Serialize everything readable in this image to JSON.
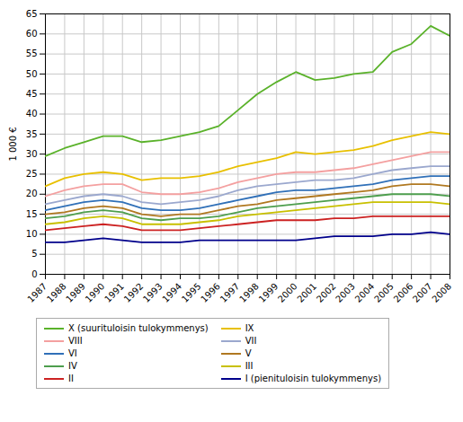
{
  "chart_data": {
    "type": "line",
    "ylabel": "1 000 €",
    "x": [
      1987,
      1988,
      1989,
      1990,
      1991,
      1992,
      1993,
      1994,
      1995,
      1996,
      1997,
      1998,
      1999,
      2000,
      2001,
      2002,
      2003,
      2004,
      2005,
      2006,
      2007,
      2008
    ],
    "xlim": [
      1987,
      2008
    ],
    "xticks": [
      1987,
      1988,
      1989,
      1990,
      1991,
      1992,
      1993,
      1994,
      1995,
      1996,
      1997,
      1998,
      1999,
      2000,
      2001,
      2002,
      2003,
      2004,
      2005,
      2006,
      2007,
      2008
    ],
    "ylim": [
      0,
      65
    ],
    "yticks": [
      0,
      5,
      10,
      15,
      20,
      25,
      30,
      35,
      40,
      45,
      50,
      55,
      60,
      65
    ],
    "grid": true,
    "legend": "bottom",
    "series": [
      {
        "name": "X (suurituloisin tulokymmenys)",
        "color": "#5ab22a",
        "values": [
          29.5,
          31.5,
          33.0,
          34.5,
          34.5,
          33.0,
          33.5,
          34.5,
          35.5,
          37.0,
          41.0,
          45.0,
          48.0,
          50.5,
          48.5,
          49.0,
          50.0,
          50.5,
          55.5,
          57.5,
          62.0,
          59.5
        ]
      },
      {
        "name": "IX",
        "color": "#e8c000",
        "values": [
          22.0,
          24.0,
          25.0,
          25.5,
          25.0,
          23.5,
          24.0,
          24.0,
          24.5,
          25.5,
          27.0,
          28.0,
          29.0,
          30.5,
          30.0,
          30.5,
          31.0,
          32.0,
          33.5,
          34.5,
          35.5,
          35.0
        ]
      },
      {
        "name": "VIII",
        "color": "#f4a0a0",
        "values": [
          19.5,
          21.0,
          22.0,
          22.5,
          22.5,
          20.5,
          20.0,
          20.0,
          20.5,
          21.5,
          23.0,
          24.0,
          25.0,
          25.5,
          25.5,
          26.0,
          26.5,
          27.5,
          28.5,
          29.5,
          30.5,
          30.5
        ]
      },
      {
        "name": "VII",
        "color": "#9ba8ce",
        "values": [
          17.5,
          18.5,
          19.5,
          20.0,
          19.5,
          18.0,
          17.5,
          18.0,
          18.5,
          19.5,
          21.0,
          22.0,
          22.5,
          23.0,
          23.5,
          23.5,
          24.0,
          25.0,
          26.0,
          26.5,
          27.0,
          27.0
        ]
      },
      {
        "name": "VI",
        "color": "#3070b8",
        "values": [
          16.0,
          17.0,
          18.0,
          18.5,
          18.0,
          16.5,
          16.0,
          16.0,
          16.5,
          17.5,
          18.5,
          19.5,
          20.5,
          21.0,
          21.0,
          21.5,
          22.0,
          22.5,
          23.5,
          24.0,
          24.5,
          24.5
        ]
      },
      {
        "name": "V",
        "color": "#b07820",
        "values": [
          15.0,
          15.5,
          16.5,
          17.0,
          16.5,
          15.0,
          14.5,
          15.0,
          15.0,
          16.0,
          17.0,
          17.5,
          18.5,
          19.0,
          19.5,
          20.0,
          20.5,
          21.0,
          22.0,
          22.5,
          22.5,
          22.0
        ]
      },
      {
        "name": "IV",
        "color": "#4d9e4d",
        "values": [
          14.0,
          14.5,
          15.5,
          16.0,
          15.5,
          14.0,
          13.5,
          14.0,
          14.0,
          14.5,
          15.5,
          16.5,
          17.0,
          17.5,
          18.0,
          18.5,
          19.0,
          19.5,
          20.0,
          20.0,
          20.0,
          19.5
        ]
      },
      {
        "name": "III",
        "color": "#c8c000",
        "values": [
          12.5,
          13.0,
          14.0,
          14.5,
          14.0,
          12.5,
          12.5,
          12.5,
          13.0,
          13.5,
          14.5,
          15.0,
          15.5,
          16.0,
          16.5,
          17.0,
          17.5,
          18.0,
          18.0,
          18.0,
          18.0,
          17.5
        ]
      },
      {
        "name": "II",
        "color": "#cc2222",
        "values": [
          11.0,
          11.5,
          12.0,
          12.5,
          12.0,
          11.0,
          11.0,
          11.0,
          11.5,
          12.0,
          12.5,
          13.0,
          13.5,
          13.5,
          13.5,
          14.0,
          14.0,
          14.5,
          14.5,
          14.5,
          14.5,
          14.5
        ]
      },
      {
        "name": "I (pienituloisin tulokymmenys)",
        "color": "#00008b",
        "values": [
          8.0,
          8.0,
          8.5,
          9.0,
          8.5,
          8.0,
          8.0,
          8.0,
          8.5,
          8.5,
          8.5,
          8.5,
          8.5,
          8.5,
          9.0,
          9.5,
          9.5,
          9.5,
          10.0,
          10.0,
          10.5,
          10.0
        ]
      }
    ]
  }
}
